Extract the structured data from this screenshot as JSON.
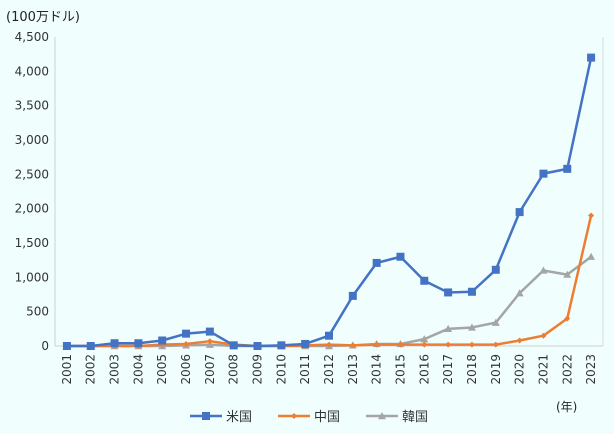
{
  "chart_data": {
    "type": "line",
    "ylabel": "(100万ドル)",
    "xlabel": "(年)",
    "ylim": [
      0,
      4500
    ],
    "yticks": [
      "0",
      "500",
      "1,000",
      "1,500",
      "2,000",
      "2,500",
      "3,000",
      "3,500",
      "4,000",
      "4,500"
    ],
    "ytick_values": [
      0,
      500,
      1000,
      1500,
      2000,
      2500,
      3000,
      3500,
      4000,
      4500
    ],
    "grid": false,
    "legend": "bottom",
    "x": [
      "2001",
      "2002",
      "2003",
      "2004",
      "2005",
      "2006",
      "2007",
      "2008",
      "2009",
      "2010",
      "2011",
      "2012",
      "2013",
      "2014",
      "2015",
      "2016",
      "2017",
      "2018",
      "2019",
      "2020",
      "2021",
      "2022",
      "2023"
    ],
    "series": [
      {
        "name": "米国",
        "color": "#4472c4",
        "marker": "square",
        "values": [
          0,
          0,
          40,
          40,
          80,
          180,
          210,
          10,
          0,
          10,
          30,
          150,
          730,
          1210,
          1300,
          950,
          780,
          790,
          1110,
          1950,
          2510,
          2580,
          4200
        ]
      },
      {
        "name": "中国",
        "color": "#ed7d31",
        "marker": "diamond",
        "values": [
          0,
          0,
          0,
          0,
          20,
          30,
          70,
          20,
          0,
          0,
          10,
          20,
          10,
          20,
          20,
          20,
          20,
          20,
          20,
          80,
          150,
          400,
          1900
        ]
      },
      {
        "name": "韓国",
        "color": "#a5a5a5",
        "marker": "triangle",
        "values": [
          0,
          0,
          0,
          0,
          0,
          10,
          20,
          0,
          0,
          0,
          0,
          0,
          10,
          30,
          30,
          100,
          250,
          270,
          340,
          770,
          1100,
          1040,
          1300
        ]
      }
    ]
  }
}
